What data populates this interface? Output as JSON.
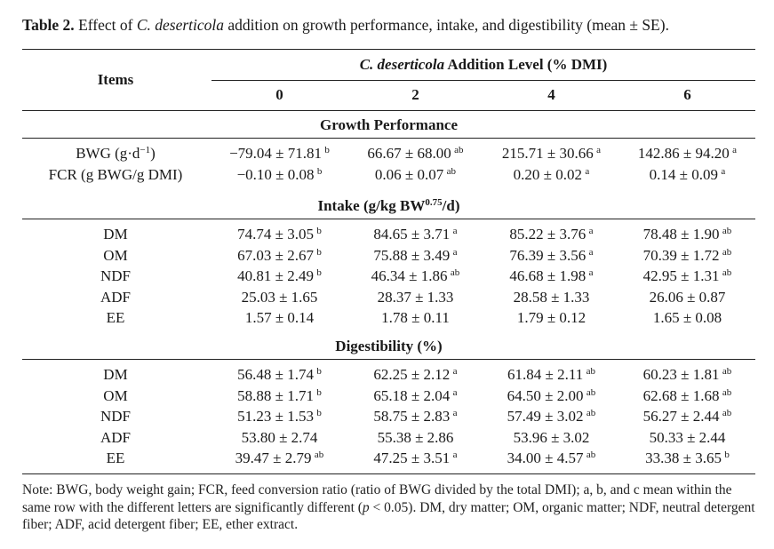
{
  "caption": {
    "label": "Table 2.",
    "text_before": " Effect of ",
    "italic": "C. deserticola",
    "text_after": " addition on growth performance, intake, and digestibility (mean ± SE)."
  },
  "header": {
    "items": "Items",
    "group_italic": "C. deserticola",
    "group_rest": " Addition Level (% DMI)",
    "levels": [
      "0",
      "2",
      "4",
      "6"
    ]
  },
  "sections": [
    {
      "title": "Growth Performance",
      "title_sup": "",
      "title_after": "",
      "rows": [
        {
          "item": "BWG (g·d",
          "item_sup": "−1",
          "item_after": ")",
          "cells": [
            {
              "v": "−79.04 ± 71.81",
              "s": "b"
            },
            {
              "v": "66.67 ± 68.00",
              "s": "ab"
            },
            {
              "v": "215.71 ± 30.66",
              "s": "a"
            },
            {
              "v": "142.86 ± 94.20",
              "s": "a"
            }
          ]
        },
        {
          "item": "FCR (g BWG/g DMI)",
          "item_sup": "",
          "item_after": "",
          "cells": [
            {
              "v": "−0.10 ± 0.08",
              "s": "b"
            },
            {
              "v": "0.06 ± 0.07",
              "s": "ab"
            },
            {
              "v": "0.20 ± 0.02",
              "s": "a"
            },
            {
              "v": "0.14 ± 0.09",
              "s": "a"
            }
          ]
        }
      ]
    },
    {
      "title": "Intake (g/kg BW",
      "title_sup": "0.75",
      "title_after": "/d)",
      "rows": [
        {
          "item": "DM",
          "item_sup": "",
          "item_after": "",
          "cells": [
            {
              "v": "74.74 ± 3.05",
              "s": "b"
            },
            {
              "v": "84.65 ± 3.71",
              "s": "a"
            },
            {
              "v": "85.22 ± 3.76",
              "s": "a"
            },
            {
              "v": "78.48 ± 1.90",
              "s": "ab"
            }
          ]
        },
        {
          "item": "OM",
          "item_sup": "",
          "item_after": "",
          "cells": [
            {
              "v": "67.03 ± 2.67",
              "s": "b"
            },
            {
              "v": "75.88 ± 3.49",
              "s": "a"
            },
            {
              "v": "76.39 ± 3.56",
              "s": "a"
            },
            {
              "v": "70.39 ± 1.72",
              "s": "ab"
            }
          ]
        },
        {
          "item": "NDF",
          "item_sup": "",
          "item_after": "",
          "cells": [
            {
              "v": "40.81 ± 2.49",
              "s": "b"
            },
            {
              "v": "46.34 ± 1.86",
              "s": "ab"
            },
            {
              "v": "46.68 ± 1.98",
              "s": "a"
            },
            {
              "v": "42.95 ± 1.31",
              "s": "ab"
            }
          ]
        },
        {
          "item": "ADF",
          "item_sup": "",
          "item_after": "",
          "cells": [
            {
              "v": "25.03 ± 1.65",
              "s": ""
            },
            {
              "v": "28.37 ± 1.33",
              "s": ""
            },
            {
              "v": "28.58 ± 1.33",
              "s": ""
            },
            {
              "v": "26.06 ± 0.87",
              "s": ""
            }
          ]
        },
        {
          "item": "EE",
          "item_sup": "",
          "item_after": "",
          "cells": [
            {
              "v": "1.57 ± 0.14",
              "s": ""
            },
            {
              "v": "1.78 ± 0.11",
              "s": ""
            },
            {
              "v": "1.79 ± 0.12",
              "s": ""
            },
            {
              "v": "1.65 ± 0.08",
              "s": ""
            }
          ]
        }
      ]
    },
    {
      "title": "Digestibility (%)",
      "title_sup": "",
      "title_after": "",
      "rows": [
        {
          "item": "DM",
          "item_sup": "",
          "item_after": "",
          "cells": [
            {
              "v": "56.48 ± 1.74",
              "s": "b"
            },
            {
              "v": "62.25 ± 2.12",
              "s": "a"
            },
            {
              "v": "61.84 ± 2.11",
              "s": "ab"
            },
            {
              "v": "60.23 ± 1.81",
              "s": "ab"
            }
          ]
        },
        {
          "item": "OM",
          "item_sup": "",
          "item_after": "",
          "cells": [
            {
              "v": "58.88 ± 1.71",
              "s": "b"
            },
            {
              "v": "65.18 ± 2.04",
              "s": "a"
            },
            {
              "v": "64.50 ± 2.00",
              "s": "ab"
            },
            {
              "v": "62.68 ± 1.68",
              "s": "ab"
            }
          ]
        },
        {
          "item": "NDF",
          "item_sup": "",
          "item_after": "",
          "cells": [
            {
              "v": "51.23 ± 1.53",
              "s": "b"
            },
            {
              "v": "58.75 ± 2.83",
              "s": "a"
            },
            {
              "v": "57.49 ± 3.02",
              "s": "ab"
            },
            {
              "v": "56.27 ± 2.44",
              "s": "ab"
            }
          ]
        },
        {
          "item": "ADF",
          "item_sup": "",
          "item_after": "",
          "cells": [
            {
              "v": "53.80 ± 2.74",
              "s": ""
            },
            {
              "v": "55.38 ± 2.86",
              "s": ""
            },
            {
              "v": "53.96 ± 3.02",
              "s": ""
            },
            {
              "v": "50.33 ± 2.44",
              "s": ""
            }
          ]
        },
        {
          "item": "EE",
          "item_sup": "",
          "item_after": "",
          "cells": [
            {
              "v": "39.47 ± 2.79",
              "s": "ab"
            },
            {
              "v": "47.25 ± 3.51",
              "s": "a"
            },
            {
              "v": "34.00 ± 4.57",
              "s": "ab"
            },
            {
              "v": "33.38 ± 3.65",
              "s": "b"
            }
          ]
        }
      ]
    }
  ],
  "note": {
    "before": "Note: BWG, body weight gain; FCR, feed conversion ratio (ratio of BWG divided by the total DMI); a, b, and c mean within the same row with the different letters are significantly different (",
    "p": "p",
    "after": " < 0.05). DM, dry matter; OM, organic matter; NDF, neutral detergent fiber; ADF, acid detergent fiber; EE, ether extract."
  }
}
